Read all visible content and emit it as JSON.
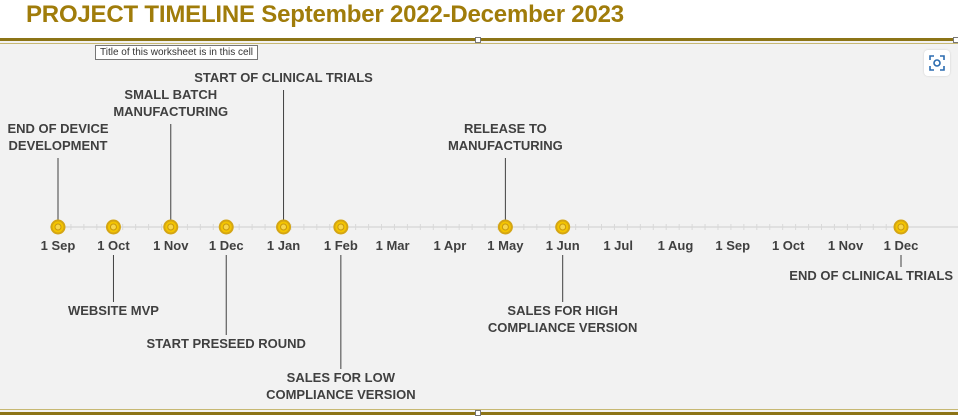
{
  "page": {
    "title": "PROJECT TIMELINE September 2022-December 2023",
    "tooltip": "Title of this worksheet is in this cell"
  },
  "colors": {
    "title": "#a07c0a",
    "frame": "#8c7416",
    "marker_fill": "#f3c400",
    "marker_ring": "#d4a514",
    "text": "#404040",
    "background": "#f2f2f2"
  },
  "icons": {
    "focus": "focus-mode-icon"
  },
  "chart_data": {
    "type": "timeline",
    "title": "",
    "x_axis": {
      "start": "2022-09-01",
      "end": "2023-12-01",
      "tick_labels": [
        "1 Sep",
        "1 Oct",
        "1 Nov",
        "1 Dec",
        "1 Jan",
        "1 Feb",
        "1 Mar",
        "1 Apr",
        "1 May",
        "1 Jun",
        "1 Jul",
        "1 Aug",
        "1 Sep",
        "1 Oct",
        "1 Nov",
        "1 Dec"
      ],
      "tick_dates": [
        "2022-09-01",
        "2022-10-01",
        "2022-11-01",
        "2022-12-01",
        "2023-01-01",
        "2023-02-01",
        "2023-03-01",
        "2023-04-01",
        "2023-05-01",
        "2023-06-01",
        "2023-07-01",
        "2023-08-01",
        "2023-09-01",
        "2023-10-01",
        "2023-11-01",
        "2023-12-01"
      ]
    },
    "events": [
      {
        "date": "2022-09-01",
        "label": [
          "END OF DEVICE",
          "DEVELOPMENT"
        ],
        "side": "above",
        "offset": 1
      },
      {
        "date": "2022-10-01",
        "label": [
          "WEBSITE MVP"
        ],
        "side": "below",
        "offset": 1
      },
      {
        "date": "2022-11-01",
        "label": [
          "SMALL BATCH",
          "MANUFACTURING"
        ],
        "side": "above",
        "offset": 2
      },
      {
        "date": "2022-12-01",
        "label": [
          "START PRESEED ROUND"
        ],
        "side": "below",
        "offset": 2
      },
      {
        "date": "2023-01-01",
        "label": [
          "START OF CLINICAL TRIALS"
        ],
        "side": "above",
        "offset": 3
      },
      {
        "date": "2023-02-01",
        "label": [
          "SALES FOR LOW",
          "COMPLIANCE VERSION"
        ],
        "side": "below",
        "offset": 3
      },
      {
        "date": "2023-05-01",
        "label": [
          "RELEASE TO",
          "MANUFACTURING"
        ],
        "side": "above",
        "offset": 1
      },
      {
        "date": "2023-06-01",
        "label": [
          "SALES FOR HIGH",
          "COMPLIANCE VERSION"
        ],
        "side": "below",
        "offset": 1
      },
      {
        "date": "2023-12-01",
        "label": [
          "END OF CLINICAL TRIALS"
        ],
        "side": "below",
        "offset": 0
      }
    ]
  }
}
